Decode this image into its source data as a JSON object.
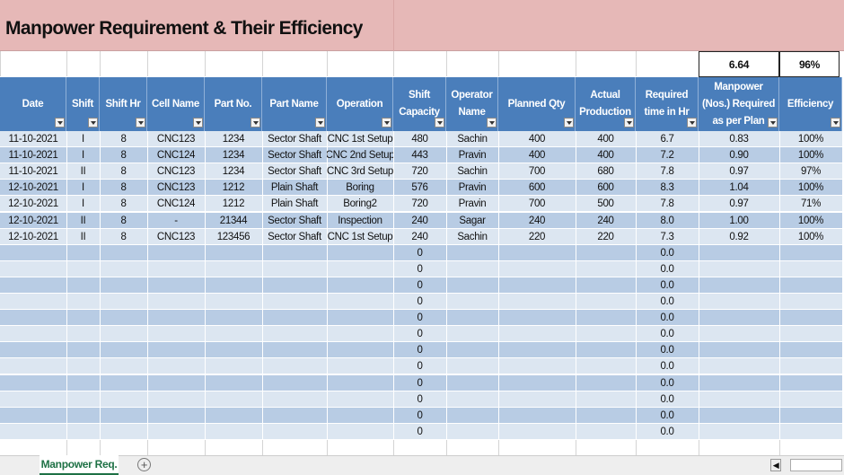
{
  "title": "Manpower Requirement & Their Efficiency",
  "summary": {
    "manpower_total": "6.64",
    "efficiency_total": "96%"
  },
  "headers": [
    "Date",
    "Shift",
    "Shift Hr",
    "Cell Name",
    "Part No.",
    "Part Name",
    "Operation",
    "Shift Capacity",
    "Operator Name",
    "Planned Qty",
    "Actual Production",
    "Required time in Hr",
    "Manpower (Nos.) Required as per Plan",
    "Efficiency"
  ],
  "rows": [
    [
      "11-10-2021",
      "I",
      "8",
      "CNC123",
      "1234",
      "Sector Shaft",
      "CNC 1st Setup",
      "480",
      "Sachin",
      "400",
      "400",
      "6.7",
      "0.83",
      "100%"
    ],
    [
      "11-10-2021",
      "I",
      "8",
      "CNC124",
      "1234",
      "Sector Shaft",
      "CNC 2nd Setup",
      "443",
      "Pravin",
      "400",
      "400",
      "7.2",
      "0.90",
      "100%"
    ],
    [
      "11-10-2021",
      "II",
      "8",
      "CNC123",
      "1234",
      "Sector Shaft",
      "CNC 3rd Setup",
      "720",
      "Sachin",
      "700",
      "680",
      "7.8",
      "0.97",
      "97%"
    ],
    [
      "12-10-2021",
      "I",
      "8",
      "CNC123",
      "1212",
      "Plain Shaft",
      "Boring",
      "576",
      "Pravin",
      "600",
      "600",
      "8.3",
      "1.04",
      "100%"
    ],
    [
      "12-10-2021",
      "I",
      "8",
      "CNC124",
      "1212",
      "Plain Shaft",
      "Boring2",
      "720",
      "Pravin",
      "700",
      "500",
      "7.8",
      "0.97",
      "71%"
    ],
    [
      "12-10-2021",
      "II",
      "8",
      "-",
      "21344",
      "Sector Shaft",
      "Inspection",
      "240",
      "Sagar",
      "240",
      "240",
      "8.0",
      "1.00",
      "100%"
    ],
    [
      "12-10-2021",
      "II",
      "8",
      "CNC123",
      "123456",
      "Sector Shaft",
      "CNC 1st Setup",
      "240",
      "Sachin",
      "220",
      "220",
      "7.3",
      "0.92",
      "100%"
    ]
  ],
  "blank_rows": [
    {
      "shift_capacity": "0",
      "required_time": "0.0"
    },
    {
      "shift_capacity": "0",
      "required_time": "0.0"
    },
    {
      "shift_capacity": "0",
      "required_time": "0.0"
    },
    {
      "shift_capacity": "0",
      "required_time": "0.0"
    },
    {
      "shift_capacity": "0",
      "required_time": "0.0"
    },
    {
      "shift_capacity": "0",
      "required_time": "0.0"
    },
    {
      "shift_capacity": "0",
      "required_time": "0.0"
    },
    {
      "shift_capacity": "0",
      "required_time": "0.0"
    },
    {
      "shift_capacity": "0",
      "required_time": "0.0"
    },
    {
      "shift_capacity": "0",
      "required_time": "0.0"
    },
    {
      "shift_capacity": "0",
      "required_time": "0.0"
    },
    {
      "shift_capacity": "0",
      "required_time": "0.0"
    }
  ],
  "sheet_tab": "Manpower Req."
}
